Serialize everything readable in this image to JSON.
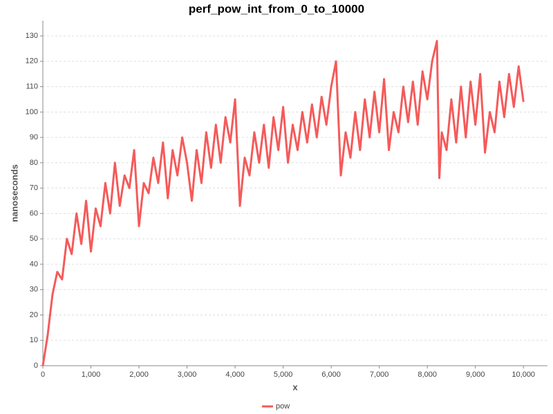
{
  "chart_data": {
    "type": "line",
    "title": "perf_pow_int_from_0_to_10000",
    "x_label": "x",
    "y_label": "nanoseconds",
    "x": [
      0,
      100,
      200,
      300,
      400,
      500,
      600,
      700,
      800,
      900,
      1000,
      1100,
      1200,
      1300,
      1400,
      1500,
      1600,
      1700,
      1800,
      1900,
      2000,
      2100,
      2200,
      2300,
      2400,
      2500,
      2600,
      2700,
      2800,
      2900,
      3000,
      3100,
      3200,
      3300,
      3400,
      3500,
      3600,
      3700,
      3800,
      3900,
      4000,
      4100,
      4200,
      4300,
      4400,
      4500,
      4600,
      4700,
      4800,
      4900,
      5000,
      5100,
      5200,
      5300,
      5400,
      5500,
      5600,
      5700,
      5800,
      5900,
      6000,
      6100,
      6200,
      6300,
      6400,
      6500,
      6600,
      6700,
      6800,
      6900,
      7000,
      7100,
      7200,
      7300,
      7400,
      7500,
      7600,
      7700,
      7800,
      7900,
      8000,
      8100,
      8200,
      8250,
      8300,
      8400,
      8500,
      8600,
      8700,
      8800,
      8900,
      9000,
      9100,
      9200,
      9300,
      9400,
      9500,
      9600,
      9700,
      9800,
      9900,
      10000
    ],
    "series": [
      {
        "name": "pow",
        "color": "#f55a5a",
        "values": [
          0,
          12,
          28,
          37,
          34,
          50,
          44,
          60,
          48,
          65,
          45,
          62,
          55,
          72,
          60,
          80,
          63,
          75,
          70,
          85,
          55,
          72,
          68,
          82,
          72,
          88,
          66,
          85,
          75,
          90,
          80,
          65,
          85,
          72,
          92,
          78,
          95,
          80,
          98,
          88,
          105,
          63,
          82,
          75,
          92,
          80,
          95,
          78,
          98,
          85,
          102,
          80,
          95,
          85,
          100,
          88,
          103,
          90,
          106,
          95,
          110,
          120,
          75,
          92,
          82,
          100,
          85,
          105,
          90,
          108,
          92,
          113,
          85,
          100,
          92,
          110,
          96,
          112,
          95,
          116,
          105,
          120,
          128,
          74,
          92,
          85,
          105,
          88,
          110,
          90,
          112,
          95,
          115,
          84,
          100,
          92,
          112,
          98,
          115,
          102,
          118,
          104
        ]
      }
    ],
    "xlim": [
      0,
      10500
    ],
    "ylim": [
      0,
      136
    ],
    "xticks": [
      0,
      {
        "value": 1000,
        "label": "1,000"
      },
      {
        "value": 2000,
        "label": "2,000"
      },
      {
        "value": 3000,
        "label": "3,000"
      },
      {
        "value": 4000,
        "label": "4,000"
      },
      {
        "value": 5000,
        "label": "5,000"
      },
      {
        "value": 6000,
        "label": "6,000"
      },
      {
        "value": 7000,
        "label": "7,000"
      },
      {
        "value": 8000,
        "label": "8,000"
      },
      {
        "value": 9000,
        "label": "9,000"
      },
      {
        "value": 10000,
        "label": "10,000"
      }
    ],
    "yticks": [
      0,
      10,
      20,
      30,
      40,
      50,
      60,
      70,
      80,
      90,
      100,
      110,
      120,
      130
    ],
    "grid": true
  }
}
